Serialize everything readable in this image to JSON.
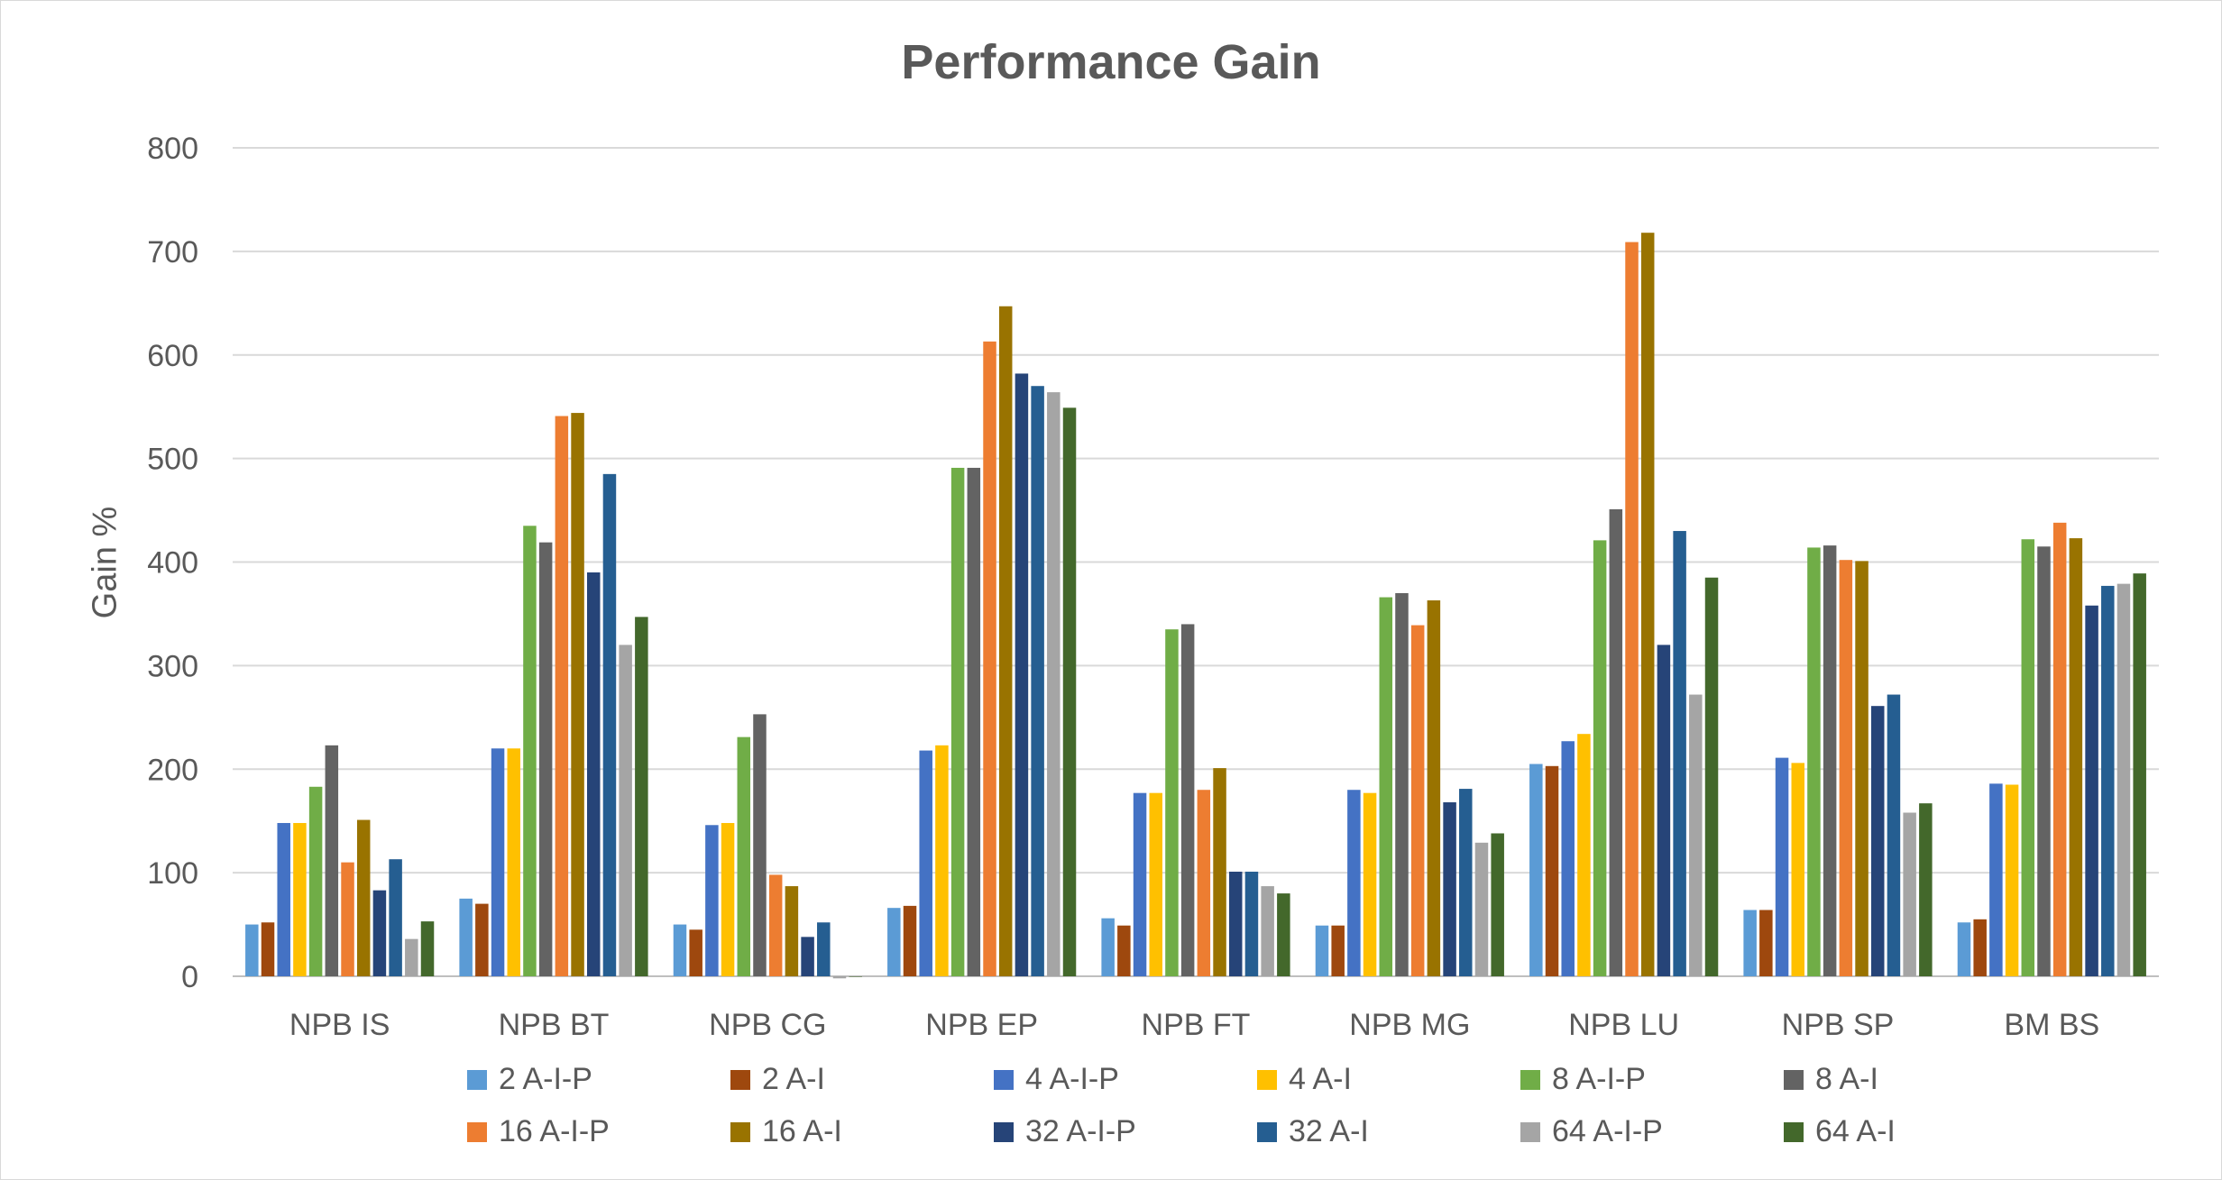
{
  "chart_data": {
    "type": "bar",
    "title": "Performance Gain",
    "xlabel": "",
    "ylabel": "Gain %",
    "ylim": [
      0,
      800
    ],
    "yticks": [
      0,
      100,
      200,
      300,
      400,
      500,
      600,
      700,
      800
    ],
    "grid": true,
    "legend_position": "bottom",
    "categories": [
      "NPB IS",
      "NPB BT",
      "NPB CG",
      "NPB EP",
      "NPB FT",
      "NPB MG",
      "NPB LU",
      "NPB SP",
      "BM BS"
    ],
    "series": [
      {
        "name": "2 A-I-P",
        "color": "#5B9BD5",
        "values": [
          50,
          75,
          50,
          66,
          56,
          49,
          205,
          64,
          52
        ]
      },
      {
        "name": "2 A-I",
        "color": "#9E480E",
        "values": [
          52,
          70,
          45,
          68,
          49,
          49,
          203,
          64,
          55
        ]
      },
      {
        "name": "4 A-I-P",
        "color": "#4472C4",
        "values": [
          148,
          220,
          146,
          218,
          177,
          180,
          227,
          211,
          186
        ]
      },
      {
        "name": "4 A-I",
        "color": "#FFC000",
        "values": [
          148,
          220,
          148,
          223,
          177,
          177,
          234,
          206,
          185
        ]
      },
      {
        "name": "8 A-I-P",
        "color": "#70AD47",
        "values": [
          183,
          435,
          231,
          491,
          335,
          366,
          421,
          414,
          422
        ]
      },
      {
        "name": "8 A-I",
        "color": "#636363",
        "values": [
          223,
          419,
          253,
          491,
          340,
          370,
          451,
          416,
          415
        ]
      },
      {
        "name": "16 A-I-P",
        "color": "#ED7D31",
        "values": [
          110,
          541,
          98,
          613,
          180,
          339,
          709,
          402,
          438
        ]
      },
      {
        "name": "16 A-I",
        "color": "#997300",
        "values": [
          151,
          544,
          87,
          647,
          201,
          363,
          718,
          401,
          423
        ]
      },
      {
        "name": "32 A-I-P",
        "color": "#264478",
        "values": [
          83,
          390,
          38,
          582,
          101,
          168,
          320,
          261,
          358
        ]
      },
      {
        "name": "32 A-I",
        "color": "#255E91",
        "values": [
          113,
          485,
          52,
          570,
          101,
          181,
          430,
          272,
          377
        ]
      },
      {
        "name": "64 A-I-P",
        "color": "#A5A5A5",
        "values": [
          36,
          320,
          -2,
          564,
          87,
          129,
          272,
          158,
          379
        ]
      },
      {
        "name": "64 A-I",
        "color": "#43682B",
        "values": [
          53,
          347,
          0,
          549,
          80,
          138,
          385,
          167,
          389
        ]
      }
    ]
  }
}
